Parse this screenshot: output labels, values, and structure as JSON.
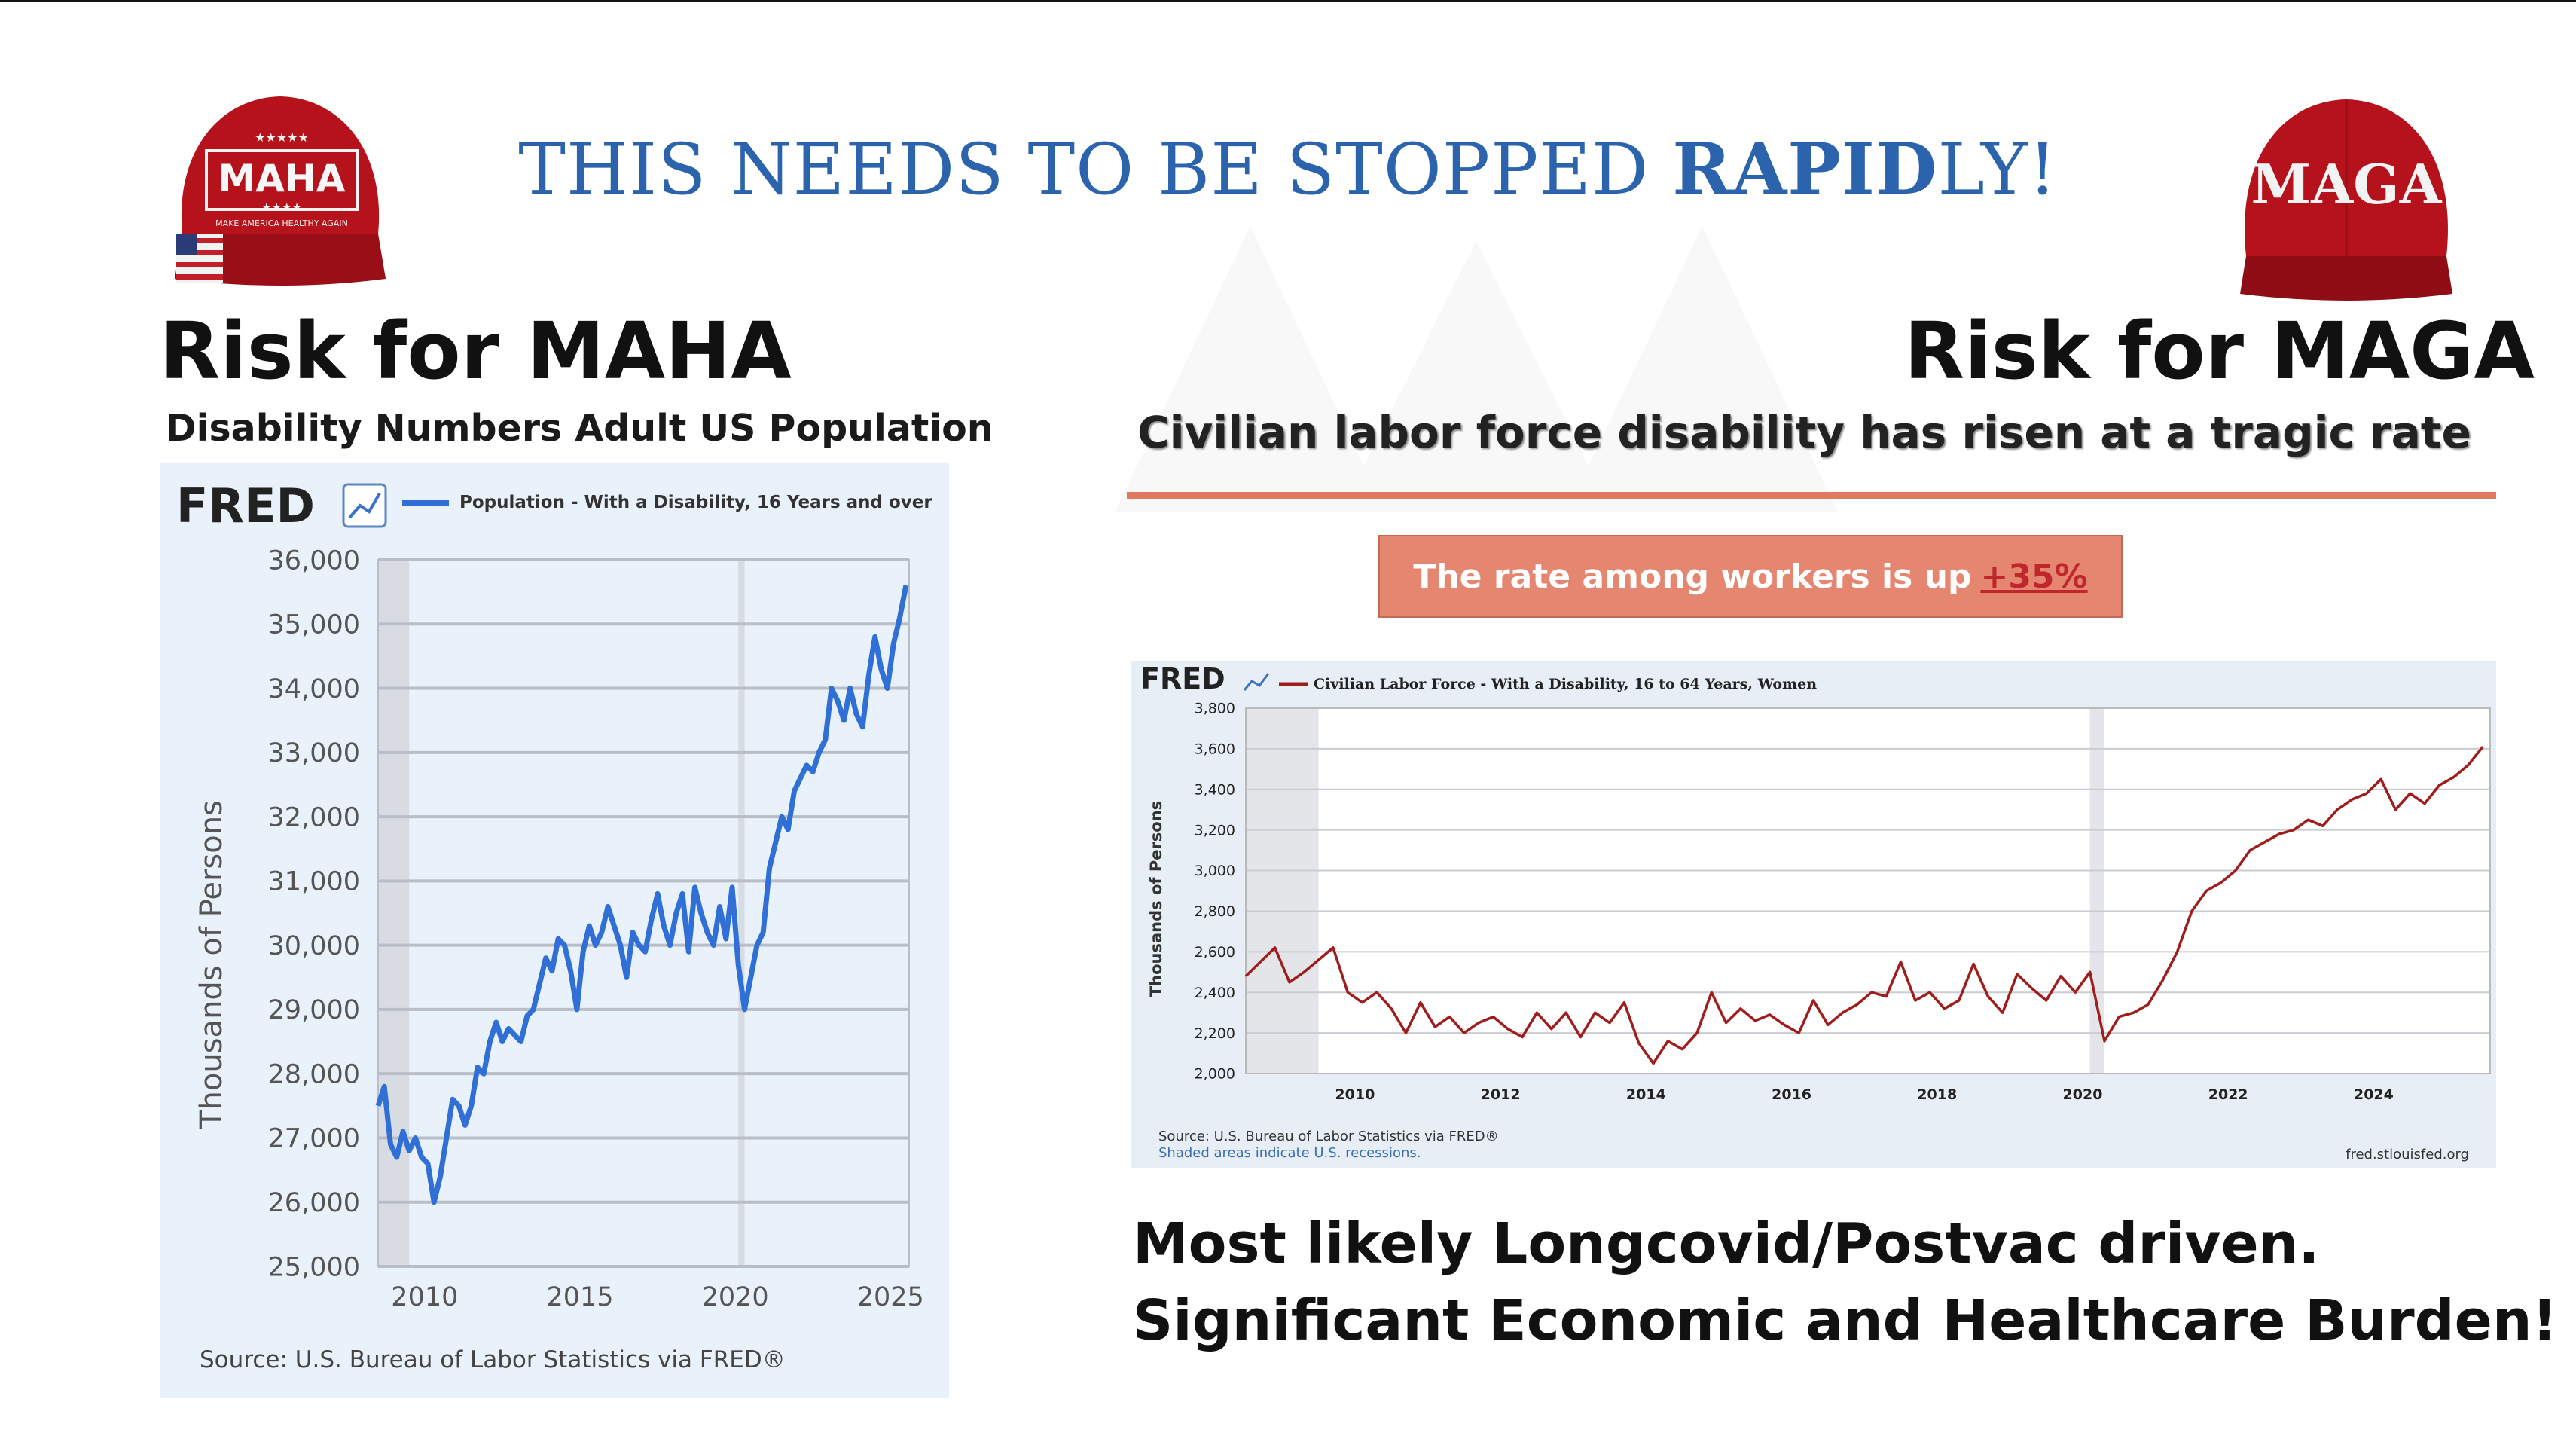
{
  "banner": {
    "prefix": "THIS NEEDS TO BE STOPPED ",
    "emph": "RAPID",
    "suffix": "LY!"
  },
  "left": {
    "heading": "Risk for MAHA",
    "subheading": "Disability Numbers Adult US Population",
    "cap": {
      "top_text": "MAHA",
      "bottom_text": "MAKE AMERICA HEALTHY AGAIN",
      "color": "#b5121b"
    }
  },
  "right": {
    "heading": "Risk for MAGA",
    "subheading": "Civilian labor force disability has risen at a tragic rate",
    "rate_box": {
      "text": "The rate among workers is up",
      "value": "+35%"
    },
    "cap": {
      "text": "MAGA",
      "color": "#b5121b"
    }
  },
  "takeaway": [
    "Most likely Longcovid/Postvac driven.",
    "Significant Economic and Healthcare Burden!"
  ],
  "chart_data": [
    {
      "type": "line",
      "brand": "FRED",
      "legend": "Population - With a Disability, 16 Years and over",
      "ylabel": "Thousands of Persons",
      "source": "Source: U.S. Bureau of Labor Statistics via FRED®",
      "ylim": [
        25000,
        36000
      ],
      "xlim": [
        2008.5,
        2025.6
      ],
      "yticks": [
        25000,
        26000,
        27000,
        28000,
        29000,
        30000,
        31000,
        32000,
        33000,
        34000,
        35000,
        36000
      ],
      "ytick_labels": [
        "25,000",
        "26,000",
        "27,000",
        "28,000",
        "29,000",
        "30,000",
        "31,000",
        "32,000",
        "33,000",
        "34,000",
        "35,000",
        "36,000"
      ],
      "xticks": [
        2010,
        2015,
        2020,
        2025
      ],
      "xtick_labels": [
        "2010",
        "2015",
        "2020",
        "2025"
      ],
      "recessions": [
        [
          2008.5,
          2009.5
        ],
        [
          2020.1,
          2020.3
        ]
      ],
      "color": "#2f6fd6",
      "grid": true,
      "series": [
        {
          "x": [
            2008.5,
            2008.7,
            2008.9,
            2009.1,
            2009.3,
            2009.5,
            2009.7,
            2009.9,
            2010.1,
            2010.3,
            2010.5,
            2010.7,
            2010.9,
            2011.1,
            2011.3,
            2011.5,
            2011.7,
            2011.9,
            2012.1,
            2012.3,
            2012.5,
            2012.7,
            2012.9,
            2013.1,
            2013.3,
            2013.5,
            2013.7,
            2013.9,
            2014.1,
            2014.3,
            2014.5,
            2014.7,
            2014.9,
            2015.1,
            2015.3,
            2015.5,
            2015.7,
            2015.9,
            2016.1,
            2016.3,
            2016.5,
            2016.7,
            2016.9,
            2017.1,
            2017.3,
            2017.5,
            2017.7,
            2017.9,
            2018.1,
            2018.3,
            2018.5,
            2018.7,
            2018.9,
            2019.1,
            2019.3,
            2019.5,
            2019.7,
            2019.9,
            2020.1,
            2020.3,
            2020.5,
            2020.7,
            2020.9,
            2021.1,
            2021.3,
            2021.5,
            2021.7,
            2021.9,
            2022.1,
            2022.3,
            2022.5,
            2022.7,
            2022.9,
            2023.1,
            2023.3,
            2023.5,
            2023.7,
            2023.9,
            2024.1,
            2024.3,
            2024.5,
            2024.7,
            2024.9,
            2025.1,
            2025.3,
            2025.5
          ],
          "y": [
            27500,
            27800,
            26900,
            26700,
            27100,
            26800,
            27000,
            26700,
            26600,
            26000,
            26400,
            27000,
            27600,
            27500,
            27200,
            27500,
            28100,
            28000,
            28500,
            28800,
            28500,
            28700,
            28600,
            28500,
            28900,
            29000,
            29400,
            29800,
            29600,
            30100,
            30000,
            29600,
            29000,
            29900,
            30300,
            30000,
            30200,
            30600,
            30300,
            30000,
            29500,
            30200,
            30000,
            29900,
            30400,
            30800,
            30300,
            30000,
            30500,
            30800,
            29900,
            30900,
            30500,
            30200,
            30000,
            30600,
            30100,
            30900,
            29700,
            29000,
            29500,
            30000,
            30200,
            31200,
            31600,
            32000,
            31800,
            32400,
            32600,
            32800,
            32700,
            33000,
            33200,
            34000,
            33800,
            33500,
            34000,
            33600,
            33400,
            34200,
            34800,
            34300,
            34000,
            34700,
            35100,
            35600
          ]
        }
      ]
    },
    {
      "type": "line",
      "brand": "FRED",
      "legend": "Civilian Labor Force - With a Disability, 16 to 64 Years, Women",
      "ylabel": "Thousands of Persons",
      "source": "Source: U.S. Bureau of Labor Statistics via FRED®",
      "note": "Shaded areas indicate U.S. recessions.",
      "site": "fred.stlouisfed.org",
      "ylim": [
        2000,
        3800
      ],
      "xlim": [
        2008.5,
        2025.6
      ],
      "yticks": [
        2000,
        2200,
        2400,
        2600,
        2800,
        3000,
        3200,
        3400,
        3600,
        3800
      ],
      "ytick_labels": [
        "2,000",
        "2,200",
        "2,400",
        "2,600",
        "2,800",
        "3,000",
        "3,200",
        "3,400",
        "3,600",
        "3,800"
      ],
      "xticks": [
        2010,
        2012,
        2014,
        2016,
        2018,
        2020,
        2022,
        2024
      ],
      "xtick_labels": [
        "2010",
        "2012",
        "2014",
        "2016",
        "2018",
        "2020",
        "2022",
        "2024"
      ],
      "recessions": [
        [
          2008.5,
          2009.5
        ],
        [
          2020.1,
          2020.3
        ]
      ],
      "color": "#a01d1d",
      "grid": true,
      "series": [
        {
          "x": [
            2008.5,
            2008.7,
            2008.9,
            2009.1,
            2009.3,
            2009.5,
            2009.7,
            2009.9,
            2010.1,
            2010.3,
            2010.5,
            2010.7,
            2010.9,
            2011.1,
            2011.3,
            2011.5,
            2011.7,
            2011.9,
            2012.1,
            2012.3,
            2012.5,
            2012.7,
            2012.9,
            2013.1,
            2013.3,
            2013.5,
            2013.7,
            2013.9,
            2014.1,
            2014.3,
            2014.5,
            2014.7,
            2014.9,
            2015.1,
            2015.3,
            2015.5,
            2015.7,
            2015.9,
            2016.1,
            2016.3,
            2016.5,
            2016.7,
            2016.9,
            2017.1,
            2017.3,
            2017.5,
            2017.7,
            2017.9,
            2018.1,
            2018.3,
            2018.5,
            2018.7,
            2018.9,
            2019.1,
            2019.3,
            2019.5,
            2019.7,
            2019.9,
            2020.1,
            2020.3,
            2020.5,
            2020.7,
            2020.9,
            2021.1,
            2021.3,
            2021.5,
            2021.7,
            2021.9,
            2022.1,
            2022.3,
            2022.5,
            2022.7,
            2022.9,
            2023.1,
            2023.3,
            2023.5,
            2023.7,
            2023.9,
            2024.1,
            2024.3,
            2024.5,
            2024.7,
            2024.9,
            2025.1,
            2025.3,
            2025.5
          ],
          "y": [
            2480,
            2550,
            2620,
            2450,
            2500,
            2560,
            2620,
            2400,
            2350,
            2400,
            2320,
            2200,
            2350,
            2230,
            2280,
            2200,
            2250,
            2280,
            2220,
            2180,
            2300,
            2220,
            2300,
            2180,
            2300,
            2250,
            2350,
            2150,
            2050,
            2160,
            2120,
            2200,
            2400,
            2250,
            2320,
            2260,
            2290,
            2240,
            2200,
            2360,
            2240,
            2300,
            2340,
            2400,
            2380,
            2550,
            2360,
            2400,
            2320,
            2360,
            2540,
            2380,
            2300,
            2490,
            2420,
            2360,
            2480,
            2400,
            2500,
            2160,
            2280,
            2300,
            2340,
            2460,
            2600,
            2800,
            2900,
            2940,
            3000,
            3100,
            3140,
            3180,
            3200,
            3250,
            3220,
            3300,
            3350,
            3380,
            3450,
            3300,
            3380,
            3330,
            3420,
            3460,
            3520,
            3610
          ]
        }
      ]
    }
  ]
}
